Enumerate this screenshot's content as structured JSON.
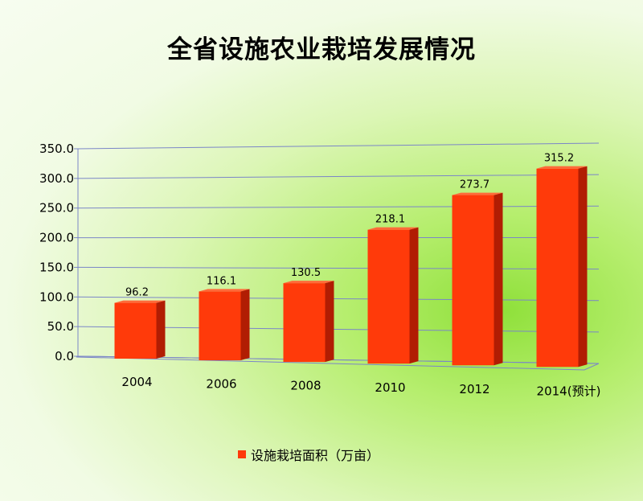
{
  "colors": {
    "bar_front": "#ff3a0a",
    "bar_side": "#b11d03",
    "bar_top": "#ff6a3a",
    "grid": "#7b86c7"
  },
  "chart_data": {
    "type": "bar",
    "title": "全省设施农业栽培发展情况",
    "categories": [
      "2004",
      "2006",
      "2008",
      "2010",
      "2012",
      "2014(预计)"
    ],
    "series": [
      {
        "name": "设施栽培面积（万亩）",
        "values": [
          96.2,
          116.1,
          130.5,
          218.1,
          273.7,
          315.2
        ]
      }
    ],
    "data_labels": [
      "96.2",
      "116.1",
      "130.5",
      "218.1",
      "273.7",
      "315.2"
    ],
    "y_ticks": [
      "0.0",
      "50.0",
      "100.0",
      "150.0",
      "200.0",
      "250.0",
      "300.0",
      "350.0"
    ],
    "ylim": [
      0,
      350
    ],
    "grid": true,
    "legend_position": "bottom"
  }
}
